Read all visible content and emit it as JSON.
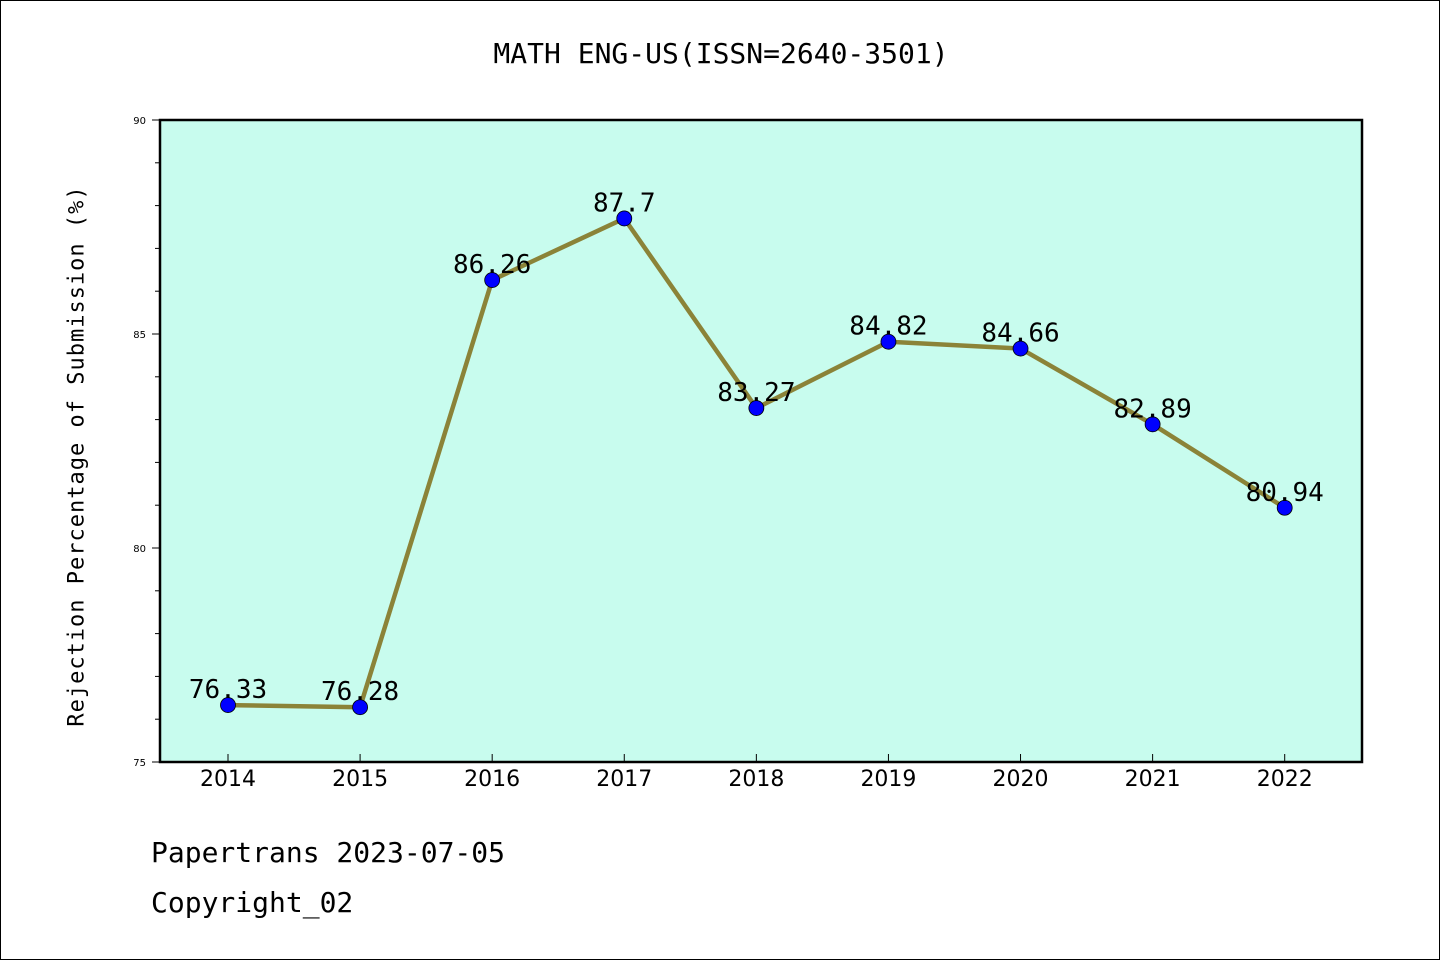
{
  "chart_data": {
    "type": "line",
    "title": "MATH ENG-US(ISSN=2640-3501)",
    "xlabel": "",
    "ylabel": "Rejection Percentage of Submission (%)",
    "categories": [
      "2014",
      "2015",
      "2016",
      "2017",
      "2018",
      "2019",
      "2020",
      "2021",
      "2022"
    ],
    "values": [
      76.33,
      76.28,
      86.26,
      87.7,
      83.27,
      84.82,
      84.66,
      82.89,
      80.94
    ],
    "data_labels": [
      "76.33",
      "76.28",
      "86.26",
      "87.7",
      "83.27",
      "84.82",
      "84.66",
      "82.89",
      "80.94"
    ],
    "ylim": [
      75,
      90
    ],
    "yticks": [
      75,
      80,
      85,
      90
    ],
    "grid": false,
    "colors": {
      "plot_background": "#c8fcee",
      "line": "#8b8338",
      "marker": "#0000ff"
    }
  },
  "footer": {
    "source": "Papertrans 2023-07-05",
    "copyright": "Copyright_02"
  }
}
